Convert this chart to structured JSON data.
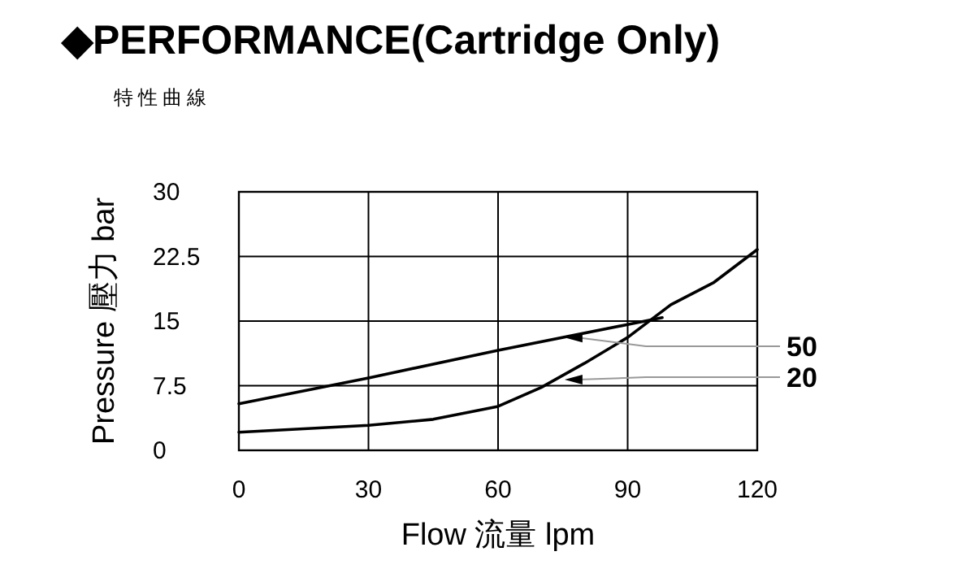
{
  "chart_data": {
    "type": "line",
    "title": "◆PERFORMANCE(Cartridge Only)",
    "subtitle": "特性曲線",
    "xlabel": "Flow 流量 lpm",
    "ylabel": "Pressure 壓力 bar",
    "xlim": [
      0,
      120
    ],
    "xticks": [
      0,
      30,
      60,
      90,
      120
    ],
    "ylim": [
      0,
      30
    ],
    "yticks": [
      0,
      7.5,
      15,
      22.5,
      30
    ],
    "grid": true,
    "marker": "none",
    "line_style": "solid",
    "series": [
      {
        "color": "#000000",
        "x": [
          0,
          30,
          60,
          90,
          98
        ],
        "values": [
          5.4,
          8.4,
          11.6,
          14.6,
          15.4
        ]
      },
      {
        "color": "#000000",
        "x": [
          0,
          30,
          45,
          60,
          70,
          80,
          90,
          100,
          110,
          120
        ],
        "values": [
          2.1,
          2.9,
          3.6,
          5.1,
          7.3,
          10.1,
          13.1,
          16.9,
          19.5,
          23.3
        ]
      }
    ],
    "annotations": [
      {
        "text": "50",
        "x": 75.4,
        "y": 13.1
      },
      {
        "text": "20",
        "x": 75.4,
        "y": 8.2
      }
    ]
  }
}
